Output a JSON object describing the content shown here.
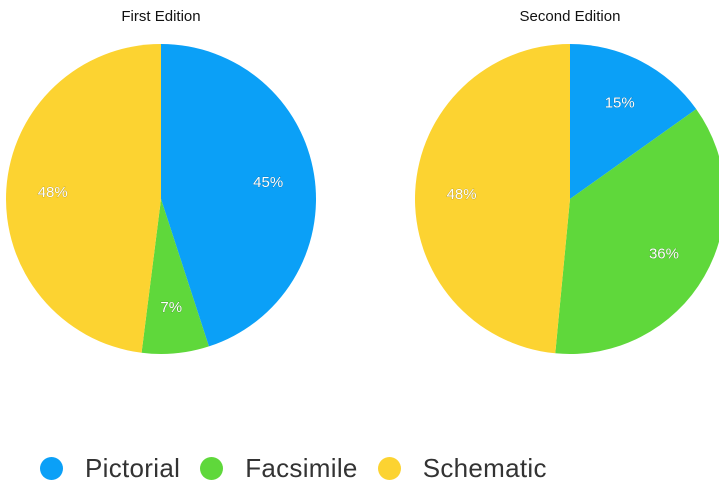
{
  "chart_data": [
    {
      "type": "pie",
      "title": "First Edition",
      "categories": [
        "Pictorial",
        "Facsimile",
        "Schematic"
      ],
      "values": [
        45,
        7,
        48
      ],
      "labels": [
        "45%",
        "7%",
        "48%"
      ]
    },
    {
      "type": "pie",
      "title": "Second Edition",
      "categories": [
        "Pictorial",
        "Facsimile",
        "Schematic"
      ],
      "values": [
        15,
        36,
        48
      ],
      "labels": [
        "15%",
        "36%",
        "48%"
      ]
    }
  ],
  "legend": {
    "placement": "bottom",
    "items": [
      {
        "label": "Pictorial",
        "color": "#0ba0f7"
      },
      {
        "label": "Facsimile",
        "color": "#5fd83b"
      },
      {
        "label": "Schematic",
        "color": "#fcd331"
      }
    ]
  }
}
